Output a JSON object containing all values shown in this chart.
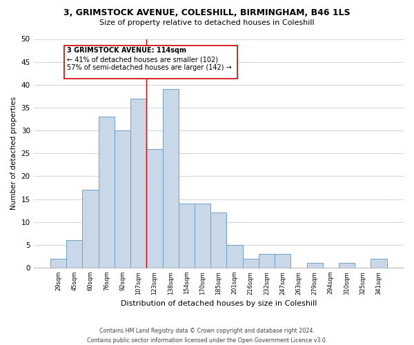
{
  "title": "3, GRIMSTOCK AVENUE, COLESHILL, BIRMINGHAM, B46 1LS",
  "subtitle": "Size of property relative to detached houses in Coleshill",
  "xlabel": "Distribution of detached houses by size in Coleshill",
  "ylabel": "Number of detached properties",
  "bin_labels": [
    "29sqm",
    "45sqm",
    "60sqm",
    "76sqm",
    "92sqm",
    "107sqm",
    "123sqm",
    "138sqm",
    "154sqm",
    "170sqm",
    "185sqm",
    "201sqm",
    "216sqm",
    "232sqm",
    "247sqm",
    "263sqm",
    "279sqm",
    "294sqm",
    "310sqm",
    "325sqm",
    "341sqm"
  ],
  "bar_heights": [
    2,
    6,
    17,
    33,
    30,
    37,
    26,
    39,
    14,
    14,
    12,
    5,
    2,
    3,
    3,
    0,
    1,
    0,
    1,
    0,
    2
  ],
  "bar_color": "#c8d8e8",
  "bar_edgecolor": "#6fa0c0",
  "vline_x_index": 5.5,
  "vline_color": "#cc0000",
  "ylim": [
    0,
    50
  ],
  "yticks": [
    0,
    5,
    10,
    15,
    20,
    25,
    30,
    35,
    40,
    45,
    50
  ],
  "annotation_title": "3 GRIMSTOCK AVENUE: 114sqm",
  "annotation_line1": "← 41% of detached houses are smaller (102)",
  "annotation_line2": "57% of semi-detached houses are larger (142) →",
  "annotation_box_color": "#ffffff",
  "annotation_box_edgecolor": "#cc0000",
  "footer_line1": "Contains HM Land Registry data © Crown copyright and database right 2024.",
  "footer_line2": "Contains public sector information licensed under the Open Government Licence v3.0.",
  "background_color": "#ffffff",
  "grid_color": "#d0d8e0"
}
